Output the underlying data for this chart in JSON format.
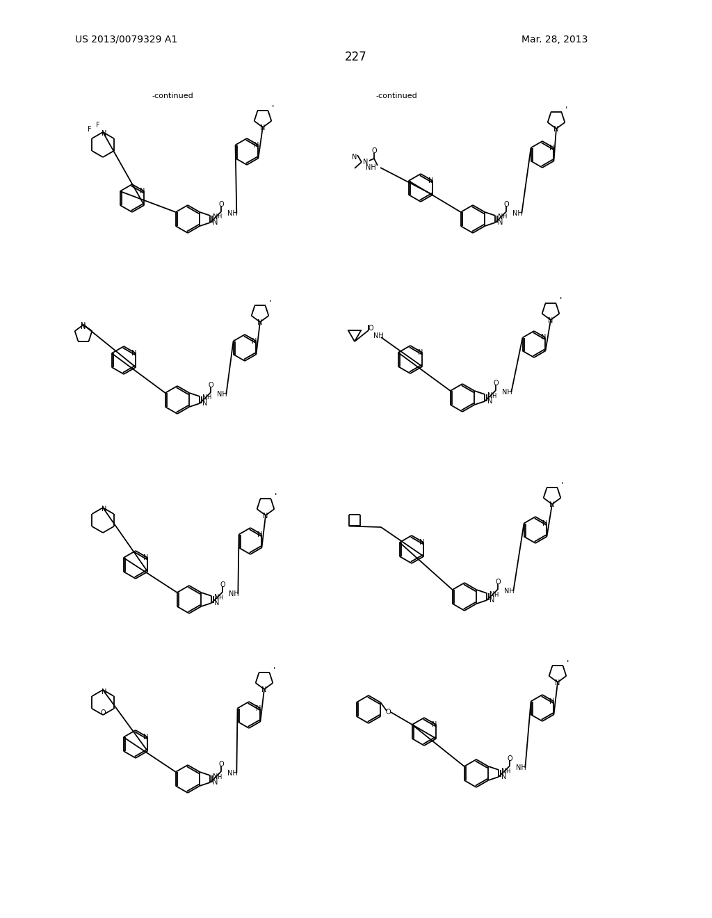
{
  "background_color": "#ffffff",
  "page_number": "227",
  "patent_left": "US 2013/0079329 A1",
  "patent_right": "Mar. 28, 2013",
  "continued_label": "-continued",
  "font_color": "#000000",
  "line_color": "#000000",
  "figure_width": 10.24,
  "figure_height": 13.2,
  "dpi": 100
}
